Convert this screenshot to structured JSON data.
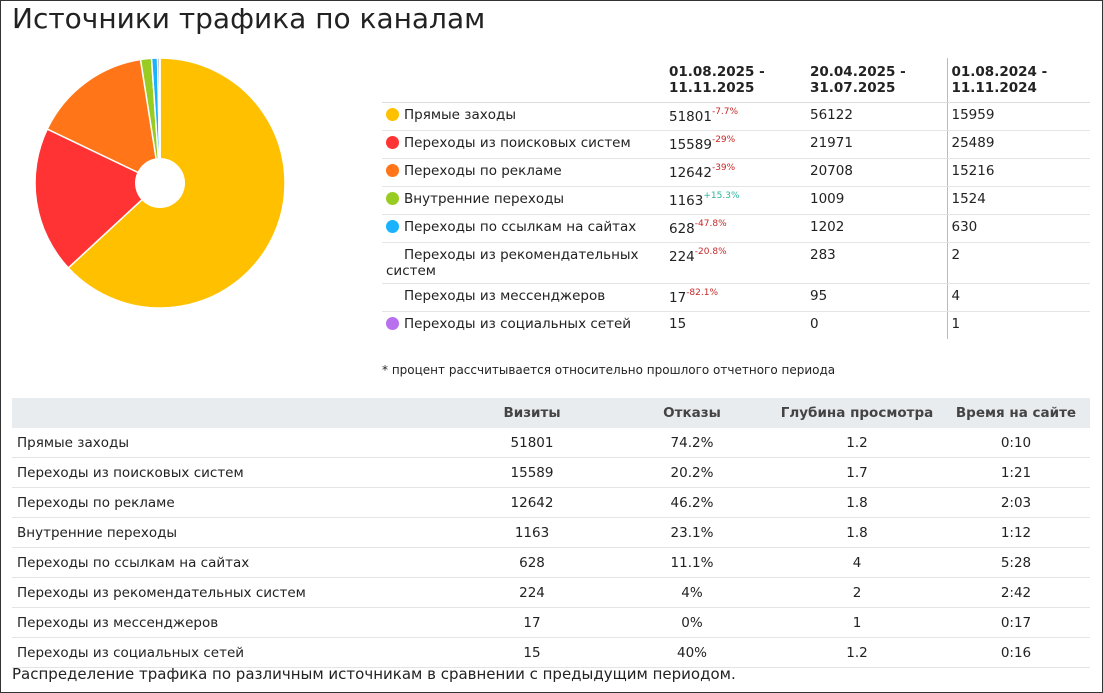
{
  "header": {
    "title": "Источники трафика по каналам"
  },
  "chart_data": {
    "type": "pie",
    "categories": [
      "Прямые заходы",
      "Переходы из поисковых систем",
      "Переходы по рекламе",
      "Внутренние переходы",
      "Переходы по ссылкам на сайтах",
      "Переходы из рекомендательных систем",
      "Переходы из мессенджеров",
      "Переходы из социальных сетей"
    ],
    "values": [
      51801,
      15589,
      12642,
      1163,
      628,
      224,
      17,
      15
    ],
    "colors": [
      "#ffc000",
      "#ff3333",
      "#ff7518",
      "#99cc22",
      "#1ab2ff",
      null,
      null,
      "#b870ee"
    ]
  },
  "comparison": {
    "columns": [
      "01.08.2025 - 11.11.2025",
      "20.04.2025 - 31.07.2025",
      "01.08.2024 - 11.11.2024"
    ],
    "changes": [
      "-7.7%",
      "-29%",
      "-39%",
      "+15.3%",
      "-47.8%",
      "-20.8%",
      "-82.1%",
      null
    ],
    "previous": [
      56122,
      21971,
      20708,
      1009,
      1202,
      283,
      95,
      0
    ],
    "last_year": [
      15959,
      25489,
      15216,
      1524,
      630,
      2,
      4,
      1
    ]
  },
  "footnote": "* процент рассчитывается относительно прошлого отчетного периода",
  "metrics": {
    "columns": [
      "Визиты",
      "Отказы",
      "Глубина просмотра",
      "Время на сайте"
    ],
    "bounce": [
      "74.2%",
      "20.2%",
      "46.2%",
      "23.1%",
      "11.1%",
      "4%",
      "0%",
      "40%"
    ],
    "depth": [
      1.2,
      1.7,
      1.8,
      1.8,
      4,
      2,
      1,
      1.2
    ],
    "time": [
      "0:10",
      "1:21",
      "2:03",
      "1:12",
      "5:28",
      "2:42",
      "0:17",
      "0:16"
    ]
  },
  "caption": "Распределение трафика по различным источникам в сравнении с предыдущим периодом."
}
